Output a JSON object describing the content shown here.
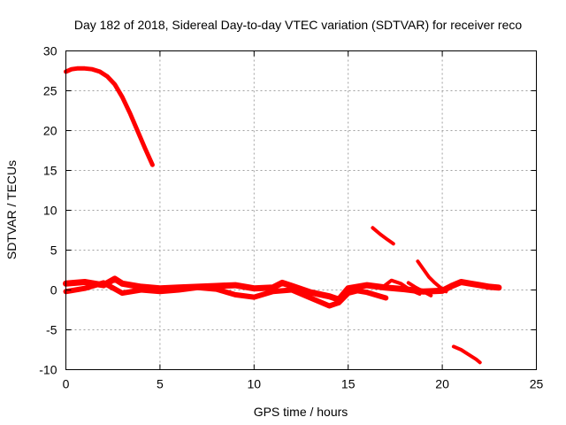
{
  "chart_data": {
    "type": "scatter",
    "title": "Day 182 of 2018, Sidereal Day-to-day VTEC variation (SDTVAR) for receiver reco",
    "xlabel": "GPS time / hours",
    "ylabel": "SDTVAR / TECUs",
    "xlim": [
      0,
      25
    ],
    "ylim": [
      -10,
      30
    ],
    "x_ticks": [
      0,
      5,
      10,
      15,
      20,
      25
    ],
    "y_ticks": [
      -10,
      -5,
      0,
      5,
      10,
      15,
      20,
      25,
      30
    ],
    "grid": true,
    "color": "#ff0000",
    "series": [
      {
        "name": "arc-high",
        "width": 5,
        "x": [
          0.0,
          0.3,
          0.6,
          1.0,
          1.4,
          1.8,
          2.2,
          2.6,
          3.0,
          3.4,
          3.8,
          4.2,
          4.6
        ],
        "y": [
          27.4,
          27.7,
          27.8,
          27.8,
          27.7,
          27.4,
          26.8,
          25.8,
          24.2,
          22.2,
          20.0,
          17.8,
          15.7
        ]
      },
      {
        "name": "baseline-upper",
        "width": 7,
        "x": [
          0.0,
          1.0,
          2.0,
          2.6,
          3.0,
          4.0,
          5.0,
          6.0,
          7.0,
          8.0,
          9.0,
          10.0,
          11.0,
          11.5,
          12.0,
          13.0,
          14.0,
          14.5,
          15.0,
          16.0,
          17.0,
          18.0,
          19.0,
          20.0,
          20.5,
          21.0,
          21.5,
          22.0,
          22.5,
          23.0
        ],
        "y": [
          0.8,
          1.0,
          0.6,
          1.4,
          0.8,
          0.4,
          0.2,
          0.3,
          0.4,
          0.5,
          0.6,
          0.2,
          0.3,
          0.9,
          0.5,
          -0.3,
          -0.8,
          -1.2,
          0.2,
          0.6,
          0.3,
          0.1,
          -0.2,
          -0.1,
          0.5,
          1.0,
          0.8,
          0.6,
          0.4,
          0.3
        ]
      },
      {
        "name": "baseline-lower",
        "width": 6,
        "x": [
          0.0,
          1.0,
          2.0,
          3.0,
          4.0,
          5.0,
          6.0,
          7.0,
          8.0,
          9.0,
          10.0,
          11.0,
          12.0,
          13.0,
          13.5,
          14.0,
          14.5,
          15.0,
          15.5,
          16.0,
          17.0
        ],
        "y": [
          -0.2,
          0.2,
          0.9,
          -0.4,
          0.0,
          -0.2,
          0.0,
          0.3,
          0.1,
          -0.6,
          -0.9,
          -0.2,
          0.0,
          -1.0,
          -1.5,
          -2.0,
          -1.6,
          -0.4,
          -0.1,
          -0.3,
          -1.0
        ]
      },
      {
        "name": "arc-17",
        "width": 4,
        "x": [
          16.3,
          16.7,
          17.1,
          17.4
        ],
        "y": [
          7.8,
          7.0,
          6.3,
          5.8
        ]
      },
      {
        "name": "arc-19",
        "width": 4,
        "x": [
          18.7,
          19.0,
          19.3,
          19.6,
          19.9,
          20.2
        ],
        "y": [
          3.6,
          2.6,
          1.6,
          0.9,
          0.3,
          -0.2
        ]
      },
      {
        "name": "arc-branch-18",
        "width": 4,
        "x": [
          16.8,
          17.3,
          17.8,
          18.3,
          18.8
        ],
        "y": [
          0.3,
          1.2,
          0.8,
          0.0,
          -0.5
        ]
      },
      {
        "name": "arc-branch-19",
        "width": 4,
        "x": [
          18.2,
          18.6,
          19.0,
          19.4
        ],
        "y": [
          0.9,
          0.3,
          -0.2,
          -0.7
        ]
      },
      {
        "name": "arc-low",
        "width": 4,
        "x": [
          20.6,
          21.0,
          21.4,
          21.8,
          22.0
        ],
        "y": [
          -7.1,
          -7.5,
          -8.1,
          -8.7,
          -9.1
        ]
      }
    ]
  }
}
